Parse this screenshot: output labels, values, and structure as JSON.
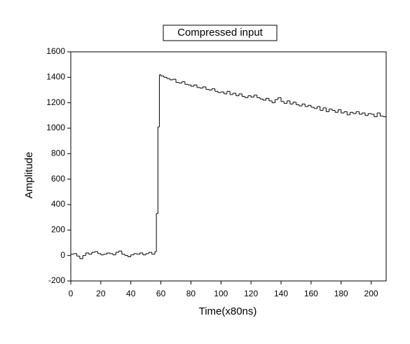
{
  "chart_data": {
    "type": "step",
    "title": "Compressed input",
    "x_label": "Time(x80ns)",
    "y_label": "Amplitude",
    "x": [
      0,
      2,
      4,
      6,
      8,
      10,
      12,
      14,
      16,
      18,
      20,
      22,
      24,
      26,
      28,
      30,
      32,
      34,
      36,
      38,
      40,
      42,
      44,
      46,
      48,
      50,
      52,
      54,
      56,
      57,
      58,
      59,
      60,
      62,
      64,
      66,
      68,
      70,
      72,
      74,
      76,
      78,
      80,
      82,
      84,
      86,
      88,
      90,
      92,
      94,
      96,
      98,
      100,
      102,
      104,
      106,
      108,
      110,
      112,
      114,
      116,
      118,
      120,
      122,
      124,
      126,
      128,
      130,
      132,
      134,
      136,
      138,
      140,
      142,
      144,
      146,
      148,
      150,
      152,
      154,
      156,
      158,
      160,
      162,
      164,
      166,
      168,
      170,
      172,
      174,
      176,
      178,
      180,
      182,
      184,
      186,
      188,
      190,
      192,
      194,
      196,
      198,
      200,
      202,
      204,
      206,
      208,
      210
    ],
    "series": [
      {
        "color": "#000000",
        "values": [
          10,
          15,
          -5,
          -25,
          0,
          20,
          10,
          25,
          30,
          15,
          5,
          10,
          20,
          15,
          5,
          25,
          35,
          10,
          0,
          -10,
          5,
          15,
          10,
          20,
          5,
          15,
          25,
          10,
          30,
          330,
          1010,
          1420,
          1410,
          1400,
          1390,
          1380,
          1385,
          1360,
          1355,
          1365,
          1345,
          1340,
          1330,
          1340,
          1320,
          1315,
          1325,
          1305,
          1300,
          1310,
          1290,
          1280,
          1285,
          1270,
          1290,
          1265,
          1275,
          1255,
          1270,
          1250,
          1240,
          1255,
          1245,
          1260,
          1240,
          1230,
          1220,
          1235,
          1215,
          1200,
          1225,
          1240,
          1210,
          1195,
          1215,
          1190,
          1205,
          1185,
          1175,
          1190,
          1170,
          1180,
          1165,
          1155,
          1170,
          1140,
          1160,
          1130,
          1150,
          1140,
          1125,
          1145,
          1120,
          1130,
          1105,
          1125,
          1115,
          1130,
          1110,
          1120,
          1100,
          1115,
          1110,
          1090,
          1120,
          1095,
          1090,
          1130
        ]
      }
    ],
    "xlim": [
      0,
      210
    ],
    "xticks": [
      0,
      20,
      40,
      60,
      80,
      100,
      120,
      140,
      160,
      180,
      200
    ],
    "ylim": [
      -200,
      1600
    ],
    "yticks": [
      -200,
      0,
      200,
      400,
      600,
      800,
      1000,
      1200,
      1400,
      1600
    ]
  }
}
